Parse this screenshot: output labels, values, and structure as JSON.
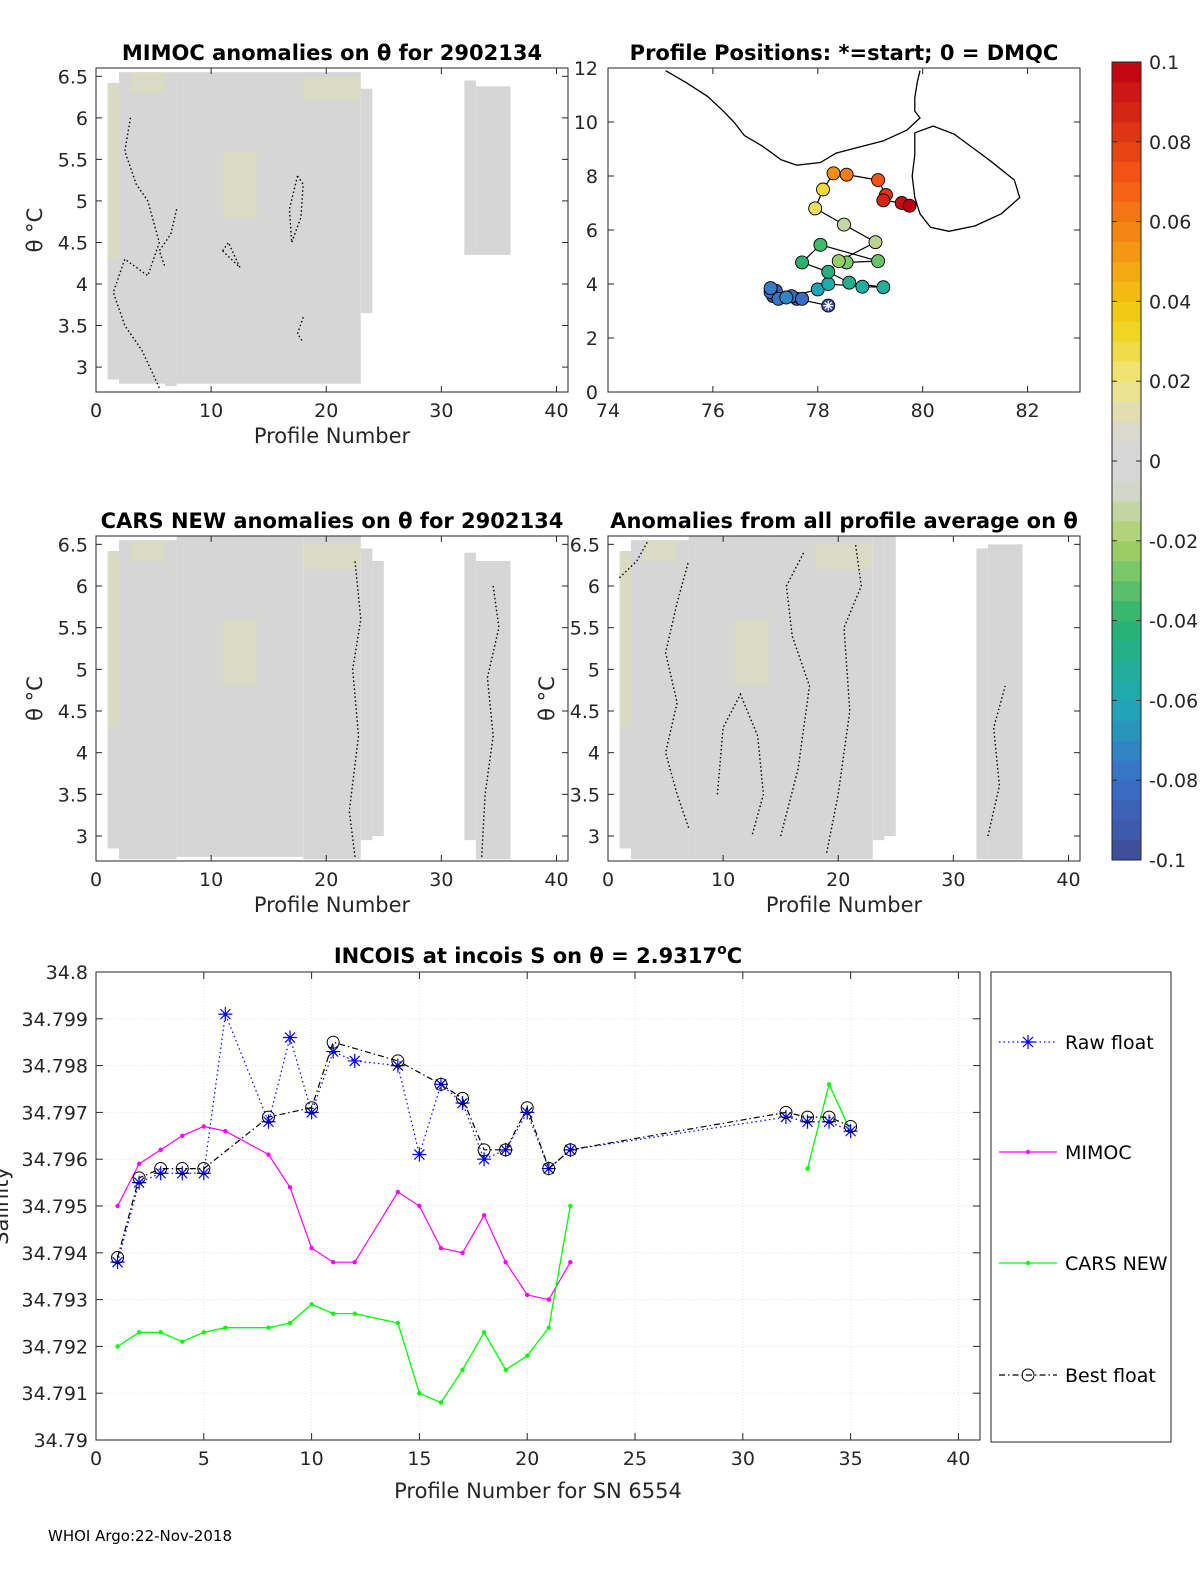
{
  "footer": "WHOI Argo:22-Nov-2018",
  "colors": {
    "field": "#d6d6d6",
    "tint": "#dfe3b0",
    "raw": "#0000ff",
    "mimoc": "#ff00ff",
    "cars": "#00ff00",
    "best": "#000000"
  },
  "chart_data": [
    {
      "id": "mimoc",
      "type": "heatmap",
      "title": "MIMOC anomalies on θ  for 2902134",
      "xlabel": "Profile Number",
      "ylabel": "θ °C",
      "xlim": [
        0,
        41
      ],
      "ylim": [
        2.7,
        6.6
      ],
      "xticks": [
        "0",
        "10",
        "20",
        "30",
        "40"
      ],
      "yticks": [
        "3",
        "3.5",
        "4",
        "4.5",
        "5",
        "5.5",
        "6",
        "6.5"
      ],
      "columns": [
        {
          "x0": 1,
          "x1": 2,
          "y0": 2.85,
          "y1": 6.42
        },
        {
          "x0": 2,
          "x1": 6,
          "y0": 2.8,
          "y1": 6.55
        },
        {
          "x0": 6,
          "x1": 7,
          "y0": 2.77,
          "y1": 6.55
        },
        {
          "x0": 7,
          "x1": 23,
          "y0": 2.8,
          "y1": 6.55
        },
        {
          "x0": 23,
          "x1": 24,
          "y0": 3.65,
          "y1": 6.35
        },
        {
          "x0": 32,
          "x1": 33,
          "y0": 4.35,
          "y1": 6.45
        },
        {
          "x0": 33,
          "x1": 36,
          "y0": 4.35,
          "y1": 6.38
        }
      ]
    },
    {
      "id": "cars",
      "type": "heatmap",
      "title": "CARS NEW anomalies on θ for 2902134",
      "xlabel": "Profile Number",
      "ylabel": "θ °C",
      "xlim": [
        0,
        41
      ],
      "ylim": [
        2.7,
        6.6
      ],
      "xticks": [
        "0",
        "10",
        "20",
        "30",
        "40"
      ],
      "yticks": [
        "3",
        "3.5",
        "4",
        "4.5",
        "5",
        "5.5",
        "6",
        "6.5"
      ],
      "columns": [
        {
          "x0": 1,
          "x1": 2,
          "y0": 2.85,
          "y1": 6.42
        },
        {
          "x0": 2,
          "x1": 7,
          "y0": 2.72,
          "y1": 6.55
        },
        {
          "x0": 7,
          "x1": 18,
          "y0": 2.75,
          "y1": 6.6
        },
        {
          "x0": 18,
          "x1": 23,
          "y0": 2.72,
          "y1": 6.6
        },
        {
          "x0": 23,
          "x1": 24,
          "y0": 2.95,
          "y1": 6.45
        },
        {
          "x0": 24,
          "x1": 25,
          "y0": 3.0,
          "y1": 6.3
        },
        {
          "x0": 32,
          "x1": 33,
          "y0": 2.95,
          "y1": 6.4
        },
        {
          "x0": 33,
          "x1": 36,
          "y0": 2.72,
          "y1": 6.3
        }
      ]
    },
    {
      "id": "avg",
      "type": "heatmap",
      "title": "Anomalies from all profile average on θ",
      "xlabel": "Profile Number",
      "ylabel": "θ °C",
      "xlim": [
        0,
        41
      ],
      "ylim": [
        2.7,
        6.6
      ],
      "xticks": [
        "0",
        "10",
        "20",
        "30",
        "40"
      ],
      "yticks": [
        "3",
        "3.5",
        "4",
        "4.5",
        "5",
        "5.5",
        "6",
        "6.5"
      ],
      "columns": [
        {
          "x0": 1,
          "x1": 2,
          "y0": 2.85,
          "y1": 6.42
        },
        {
          "x0": 2,
          "x1": 7,
          "y0": 2.72,
          "y1": 6.55
        },
        {
          "x0": 7,
          "x1": 23,
          "y0": 2.72,
          "y1": 6.6
        },
        {
          "x0": 23,
          "x1": 24,
          "y0": 2.95,
          "y1": 6.6
        },
        {
          "x0": 24,
          "x1": 25,
          "y0": 3.0,
          "y1": 6.6
        },
        {
          "x0": 32,
          "x1": 33,
          "y0": 2.72,
          "y1": 6.45
        },
        {
          "x0": 33,
          "x1": 36,
          "y0": 2.72,
          "y1": 6.5
        }
      ]
    },
    {
      "id": "map",
      "type": "scatter",
      "title": "Profile Positions: *=start; 0 = DMQC",
      "xlim": [
        74,
        83
      ],
      "ylim": [
        0,
        12
      ],
      "xticks": [
        "74",
        "76",
        "78",
        "80",
        "82"
      ],
      "yticks": [
        "0",
        "2",
        "4",
        "6",
        "8",
        "10",
        "12"
      ],
      "points": [
        {
          "x": 78.2,
          "y": 3.2,
          "c": -0.1
        },
        {
          "x": 77.6,
          "y": 3.45,
          "c": -0.095
        },
        {
          "x": 77.3,
          "y": 3.5,
          "c": -0.092
        },
        {
          "x": 77.15,
          "y": 3.55,
          "c": -0.09
        },
        {
          "x": 77.2,
          "y": 3.75,
          "c": -0.088
        },
        {
          "x": 77.5,
          "y": 3.55,
          "c": -0.085
        },
        {
          "x": 77.7,
          "y": 3.45,
          "c": -0.082
        },
        {
          "x": 77.1,
          "y": 3.7,
          "c": -0.08
        },
        {
          "x": 77.25,
          "y": 3.45,
          "c": -0.078
        },
        {
          "x": 77.1,
          "y": 3.85,
          "c": -0.075
        },
        {
          "x": 77.4,
          "y": 3.5,
          "c": -0.072
        },
        {
          "x": 78.0,
          "y": 3.8,
          "c": -0.062
        },
        {
          "x": 78.2,
          "y": 4.0,
          "c": -0.058
        },
        {
          "x": 78.85,
          "y": 3.9,
          "c": -0.055
        },
        {
          "x": 79.25,
          "y": 3.88,
          "c": -0.052
        },
        {
          "x": 78.6,
          "y": 4.05,
          "c": -0.048
        },
        {
          "x": 78.2,
          "y": 4.45,
          "c": -0.045
        },
        {
          "x": 77.7,
          "y": 4.8,
          "c": -0.04
        },
        {
          "x": 78.05,
          "y": 5.45,
          "c": -0.036
        },
        {
          "x": 79.15,
          "y": 4.85,
          "c": -0.03
        },
        {
          "x": 78.55,
          "y": 4.8,
          "c": -0.027
        },
        {
          "x": 78.4,
          "y": 4.85,
          "c": -0.023
        },
        {
          "x": 79.1,
          "y": 5.55,
          "c": -0.015
        },
        {
          "x": 78.5,
          "y": 6.2,
          "c": -0.012
        },
        {
          "x": 77.95,
          "y": 6.8,
          "c": 0.025
        },
        {
          "x": 78.1,
          "y": 7.5,
          "c": 0.03
        },
        {
          "x": 78.3,
          "y": 8.1,
          "c": 0.055
        },
        {
          "x": 78.55,
          "y": 8.05,
          "c": 0.06
        },
        {
          "x": 79.15,
          "y": 7.85,
          "c": 0.072
        },
        {
          "x": 79.3,
          "y": 7.3,
          "c": 0.082
        },
        {
          "x": 79.25,
          "y": 7.1,
          "c": 0.088
        },
        {
          "x": 79.6,
          "y": 7.0,
          "c": 0.095
        },
        {
          "x": 79.75,
          "y": 6.9,
          "c": 0.1
        }
      ],
      "coast_main": [
        [
          75.1,
          11.9
        ],
        [
          75.5,
          11.45
        ],
        [
          75.9,
          10.95
        ],
        [
          76.2,
          10.4
        ],
        [
          76.4,
          10.0
        ],
        [
          76.6,
          9.5
        ],
        [
          76.95,
          9.1
        ],
        [
          77.3,
          8.6
        ],
        [
          77.6,
          8.4
        ],
        [
          78.05,
          8.5
        ],
        [
          78.35,
          8.85
        ],
        [
          78.75,
          9.05
        ],
        [
          79.25,
          9.3
        ],
        [
          79.7,
          9.7
        ],
        [
          79.95,
          10.15
        ],
        [
          79.85,
          10.4
        ],
        [
          79.85,
          10.9
        ],
        [
          79.9,
          11.5
        ],
        [
          79.95,
          11.9
        ]
      ],
      "coast_island": [
        [
          79.85,
          9.6
        ],
        [
          80.2,
          9.85
        ],
        [
          80.6,
          9.55
        ],
        [
          80.95,
          9.05
        ],
        [
          81.3,
          8.55
        ],
        [
          81.75,
          7.85
        ],
        [
          81.85,
          7.2
        ],
        [
          81.5,
          6.6
        ],
        [
          81.0,
          6.15
        ],
        [
          80.5,
          5.95
        ],
        [
          80.15,
          6.1
        ],
        [
          79.95,
          6.6
        ],
        [
          79.85,
          7.2
        ],
        [
          79.8,
          8.0
        ],
        [
          79.85,
          8.8
        ],
        [
          79.85,
          9.6
        ]
      ],
      "track_order": [
        0,
        1,
        2,
        3,
        4,
        5,
        6,
        7,
        8,
        9,
        10,
        11,
        12,
        13,
        14,
        15,
        16,
        17,
        18,
        19,
        20,
        21,
        22,
        23,
        24,
        25,
        26,
        27,
        28,
        29,
        30,
        31,
        32
      ]
    },
    {
      "id": "colorbar",
      "type": "heatmap",
      "range": [
        -0.1,
        0.1
      ],
      "ticks": [
        "0.1",
        "0.08",
        "0.06",
        "0.04",
        "0.02",
        "0",
        "-0.02",
        "-0.04",
        "-0.06",
        "-0.08",
        "-0.1"
      ],
      "tick_values": [
        0.1,
        0.08,
        0.06,
        0.04,
        0.02,
        0,
        -0.02,
        -0.04,
        -0.06,
        -0.08,
        -0.1
      ]
    },
    {
      "id": "salinity",
      "type": "line",
      "title": "INCOIS at incois S on θ = 2.9317",
      "title_sup": "o",
      "title_unit": "C",
      "xlabel": "Profile Number for SN 6554",
      "ylabel": "Salinity",
      "xlim": [
        0,
        41
      ],
      "ylim": [
        34.79,
        34.8
      ],
      "xticks": [
        0,
        5,
        10,
        15,
        20,
        25,
        30,
        35,
        40
      ],
      "yticks": [
        "34.79",
        "34.791",
        "34.792",
        "34.793",
        "34.794",
        "34.795",
        "34.796",
        "34.797",
        "34.798",
        "34.799",
        "34.8"
      ],
      "legend": [
        "Raw float",
        "MIMOC",
        "CARS NEW",
        "Best float"
      ],
      "series": [
        {
          "name": "Raw float",
          "x": [
            1,
            2,
            3,
            4,
            5,
            6,
            8,
            9,
            10,
            11,
            12,
            14,
            15,
            16,
            17,
            18,
            19,
            20,
            21,
            22,
            32,
            33,
            34,
            35
          ],
          "values": [
            34.7938,
            34.7955,
            34.7957,
            34.7957,
            34.7957,
            34.7991,
            34.7968,
            34.7986,
            34.797,
            34.7983,
            34.7981,
            34.798,
            34.7961,
            34.7976,
            34.7972,
            34.796,
            34.7962,
            34.797,
            34.7958,
            34.7962,
            34.7969,
            34.7968,
            34.7968,
            34.7966
          ]
        },
        {
          "name": "MIMOC",
          "x": [
            1,
            2,
            3,
            4,
            5,
            6,
            8,
            9,
            10,
            11,
            12,
            14,
            15,
            16,
            17,
            18,
            19,
            20,
            21,
            22
          ],
          "values": [
            34.795,
            34.7959,
            34.7962,
            34.7965,
            34.7967,
            34.7966,
            34.7961,
            34.7954,
            34.7941,
            34.7938,
            34.7938,
            34.7953,
            34.795,
            34.7941,
            34.794,
            34.7948,
            34.7938,
            34.7931,
            34.793,
            34.7938
          ]
        },
        {
          "name": "CARS NEW",
          "x": [
            1,
            2,
            3,
            4,
            5,
            6,
            8,
            9,
            10,
            11,
            12,
            14,
            15,
            16,
            17,
            18,
            19,
            20,
            21,
            22
          ],
          "values": [
            34.792,
            34.7923,
            34.7923,
            34.7921,
            34.7923,
            34.7924,
            34.7924,
            34.7925,
            34.7929,
            34.7927,
            34.7927,
            34.7925,
            34.791,
            34.7908,
            34.7915,
            34.7923,
            34.7915,
            34.7918,
            34.7924,
            34.795
          ]
        },
        {
          "name": "CARS NEW",
          "x": [
            33,
            34,
            35
          ],
          "values": [
            34.7958,
            34.7976,
            34.7966
          ]
        },
        {
          "name": "Best float",
          "x": [
            1,
            2,
            3,
            4,
            5,
            8,
            10,
            11,
            14,
            16,
            17,
            18,
            19,
            20,
            21,
            22,
            32,
            33,
            34,
            35
          ],
          "values": [
            34.7939,
            34.7956,
            34.7958,
            34.7958,
            34.7958,
            34.7969,
            34.7971,
            34.7985,
            34.7981,
            34.7976,
            34.7973,
            34.7962,
            34.7962,
            34.7971,
            34.7958,
            34.7962,
            34.797,
            34.7969,
            34.7969,
            34.7967
          ]
        }
      ]
    }
  ]
}
